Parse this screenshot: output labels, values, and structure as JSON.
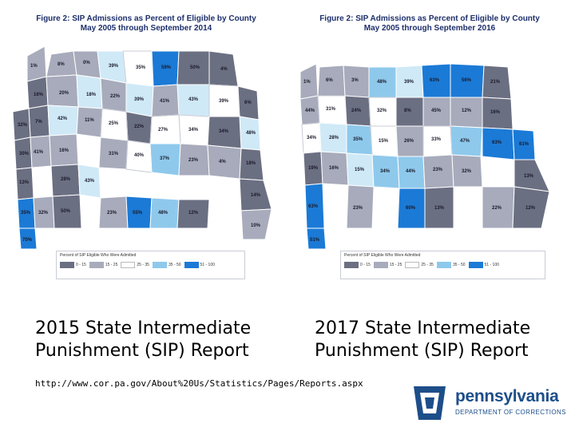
{
  "maps": [
    {
      "title_line1": "Figure 2: SIP Admissions as Percent of Eligible by County",
      "title_line2": "May 2005 through September 2014",
      "legend_title": "Percent of SIP Eligible Who Were Admitted",
      "legend_bins": [
        "0 - 15",
        "15 - 25",
        "25 - 35",
        "35 - 50",
        "51 - 100"
      ],
      "counties": [
        "1%",
        "8%",
        "0%",
        "39%",
        "35%",
        "59%",
        "50%",
        "4%",
        "16%",
        "20%",
        "18%",
        "22%",
        "43%",
        "39%",
        "39%",
        "7%",
        "41%",
        "6%",
        "42%",
        "11%",
        "22%",
        "34%",
        "48%",
        "32%",
        "25%",
        "27%",
        "34%",
        "30%",
        "41%",
        "16%",
        "31%",
        "40%",
        "37%",
        "13%",
        "28%",
        "43%",
        "23%",
        "4%",
        "18%",
        "35%",
        "32%",
        "50%",
        "23%",
        "55%",
        "48%",
        "12%",
        "14%",
        "70%",
        "10%"
      ]
    },
    {
      "title_line1": "Figure 2: SIP Admissions as Percent of Eligible by County",
      "title_line2": "May 2005 through September 2016",
      "legend_title": "Percent of SIP Eligible Who Were Admitted",
      "legend_bins": [
        "0 - 15",
        "15 - 25",
        "25 - 35",
        "35 - 50",
        "51 - 100"
      ],
      "counties": [
        "1%",
        "6%",
        "3%",
        "48%",
        "39%",
        "63%",
        "56%",
        "21%",
        "44%",
        "31%",
        "24%",
        "45%",
        "12%",
        "16%",
        "32%",
        "8%",
        "34%",
        "28%",
        "47%",
        "63%",
        "61%",
        "35%",
        "15%",
        "26%",
        "33%",
        "19%",
        "16%",
        "15%",
        "34%",
        "44%",
        "23%",
        "63%",
        "32%",
        "23%",
        "60%",
        "13%",
        "22%",
        "13%",
        "12%",
        "51%"
      ]
    }
  ],
  "captions": {
    "left": "2015 State Intermediate Punishment (SIP) Report",
    "right": "2017 State Intermediate Punishment (SIP) Report"
  },
  "source_url": "http://www.cor.pa.gov/About%20Us/Statistics/Pages/Reports.aspx",
  "logo": {
    "word": "pennsylvania",
    "sub": "DEPARTMENT OF CORRECTIONS",
    "color": "#1d4e89"
  },
  "legend_colors": [
    "#6b6f82",
    "#a7abbb",
    "#ffffff",
    "#8ec9ec",
    "#1b7ad6"
  ]
}
